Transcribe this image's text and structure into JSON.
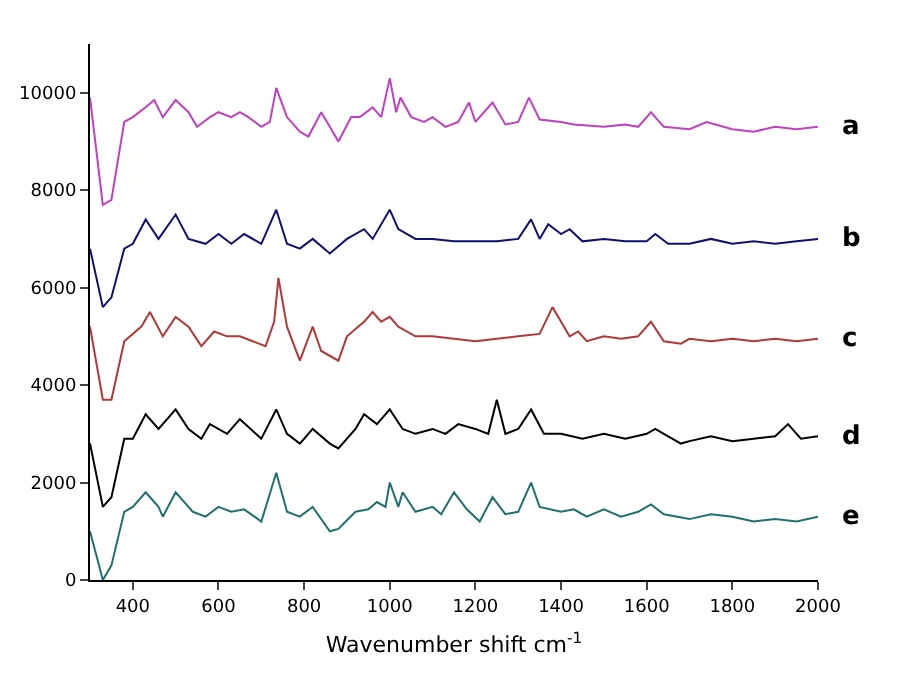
{
  "chart_data": {
    "type": "line",
    "xlabel": "Wavenumber shift cm$^{-1}$",
    "xlim": [
      300,
      2000
    ],
    "xticks": [
      400,
      600,
      800,
      1000,
      1200,
      1400,
      1600,
      1800,
      2000
    ],
    "ylim": [
      0,
      11000
    ],
    "yticks": [
      0,
      2000,
      4000,
      6000,
      8000,
      10000
    ],
    "grid": false,
    "legend": false,
    "marker": "none",
    "line_style": "solid",
    "series": [
      {
        "name": "a",
        "color": "#c040c0",
        "x": [
          300,
          330,
          350,
          380,
          400,
          430,
          450,
          470,
          500,
          530,
          550,
          580,
          600,
          630,
          650,
          670,
          700,
          720,
          735,
          760,
          790,
          810,
          840,
          860,
          880,
          910,
          930,
          960,
          980,
          1000,
          1015,
          1025,
          1050,
          1080,
          1100,
          1130,
          1160,
          1185,
          1200,
          1240,
          1270,
          1300,
          1325,
          1350,
          1400,
          1430,
          1500,
          1550,
          1580,
          1610,
          1640,
          1700,
          1740,
          1800,
          1850,
          1900,
          1950,
          2000
        ],
        "values": [
          9900,
          7700,
          7800,
          9400,
          9500,
          9700,
          9850,
          9500,
          9850,
          9600,
          9300,
          9500,
          9600,
          9500,
          9600,
          9500,
          9300,
          9400,
          10100,
          9500,
          9200,
          9100,
          9600,
          9300,
          9000,
          9500,
          9500,
          9700,
          9500,
          10300,
          9600,
          9900,
          9500,
          9400,
          9500,
          9300,
          9400,
          9800,
          9400,
          9800,
          9350,
          9400,
          9900,
          9450,
          9400,
          9350,
          9300,
          9350,
          9300,
          9600,
          9300,
          9250,
          9400,
          9250,
          9200,
          9300,
          9250,
          9300
        ]
      },
      {
        "name": "b",
        "color": "#101070",
        "x": [
          300,
          330,
          350,
          380,
          400,
          430,
          460,
          500,
          530,
          570,
          600,
          630,
          660,
          700,
          735,
          760,
          790,
          820,
          860,
          900,
          940,
          960,
          1000,
          1020,
          1060,
          1100,
          1150,
          1200,
          1250,
          1300,
          1330,
          1350,
          1370,
          1400,
          1420,
          1450,
          1500,
          1550,
          1600,
          1620,
          1650,
          1700,
          1750,
          1800,
          1850,
          1900,
          1950,
          2000
        ],
        "values": [
          6800,
          5600,
          5800,
          6800,
          6900,
          7400,
          7000,
          7500,
          7000,
          6900,
          7100,
          6900,
          7100,
          6900,
          7600,
          6900,
          6800,
          7000,
          6700,
          7000,
          7200,
          7000,
          7600,
          7200,
          7000,
          7000,
          6950,
          6950,
          6950,
          7000,
          7400,
          7000,
          7300,
          7100,
          7200,
          6950,
          7000,
          6950,
          6950,
          7100,
          6900,
          6900,
          7000,
          6900,
          6950,
          6900,
          6950,
          7000
        ]
      },
      {
        "name": "c",
        "color": "#b03838",
        "x": [
          300,
          330,
          350,
          380,
          420,
          440,
          470,
          500,
          530,
          560,
          590,
          620,
          650,
          680,
          710,
          730,
          740,
          760,
          790,
          820,
          840,
          880,
          900,
          940,
          960,
          980,
          1000,
          1020,
          1060,
          1100,
          1150,
          1200,
          1250,
          1300,
          1350,
          1380,
          1400,
          1420,
          1440,
          1460,
          1500,
          1540,
          1580,
          1610,
          1640,
          1680,
          1700,
          1750,
          1800,
          1850,
          1900,
          1950,
          2000
        ],
        "values": [
          5200,
          3700,
          3700,
          4900,
          5200,
          5500,
          5000,
          5400,
          5200,
          4800,
          5100,
          5000,
          5000,
          4900,
          4800,
          5300,
          6200,
          5200,
          4500,
          5200,
          4700,
          4500,
          5000,
          5300,
          5500,
          5300,
          5400,
          5200,
          5000,
          5000,
          4950,
          4900,
          4950,
          5000,
          5050,
          5600,
          5300,
          5000,
          5100,
          4900,
          5000,
          4950,
          5000,
          5300,
          4900,
          4850,
          4950,
          4900,
          4950,
          4900,
          4950,
          4900,
          4950
        ]
      },
      {
        "name": "d",
        "color": "#000000",
        "x": [
          300,
          330,
          350,
          380,
          400,
          430,
          460,
          500,
          530,
          560,
          580,
          620,
          650,
          700,
          735,
          760,
          790,
          820,
          860,
          880,
          920,
          940,
          970,
          1000,
          1030,
          1060,
          1100,
          1130,
          1160,
          1200,
          1230,
          1250,
          1270,
          1300,
          1330,
          1360,
          1400,
          1450,
          1500,
          1550,
          1600,
          1620,
          1650,
          1680,
          1700,
          1750,
          1800,
          1850,
          1900,
          1930,
          1960,
          2000
        ],
        "values": [
          2800,
          1500,
          1700,
          2900,
          2900,
          3400,
          3100,
          3500,
          3100,
          2900,
          3200,
          3000,
          3300,
          2900,
          3500,
          3000,
          2800,
          3100,
          2800,
          2700,
          3100,
          3400,
          3200,
          3500,
          3100,
          3000,
          3100,
          3000,
          3200,
          3100,
          3000,
          3700,
          3000,
          3100,
          3500,
          3000,
          3000,
          2900,
          3000,
          2900,
          3000,
          3100,
          2950,
          2800,
          2850,
          2950,
          2850,
          2900,
          2950,
          3200,
          2900,
          2950
        ]
      },
      {
        "name": "e",
        "color": "#207070",
        "x": [
          300,
          330,
          350,
          380,
          400,
          430,
          460,
          470,
          500,
          540,
          570,
          600,
          630,
          660,
          700,
          735,
          760,
          790,
          820,
          860,
          880,
          920,
          950,
          970,
          990,
          1000,
          1020,
          1030,
          1060,
          1100,
          1120,
          1150,
          1180,
          1210,
          1240,
          1270,
          1300,
          1330,
          1350,
          1400,
          1430,
          1460,
          1500,
          1540,
          1580,
          1610,
          1640,
          1700,
          1750,
          1800,
          1850,
          1900,
          1950,
          2000
        ],
        "values": [
          1000,
          0,
          300,
          1400,
          1500,
          1800,
          1500,
          1300,
          1800,
          1400,
          1300,
          1500,
          1400,
          1450,
          1200,
          2200,
          1400,
          1300,
          1500,
          1000,
          1050,
          1400,
          1450,
          1600,
          1500,
          2000,
          1500,
          1800,
          1400,
          1500,
          1350,
          1800,
          1450,
          1200,
          1700,
          1350,
          1400,
          2000,
          1500,
          1400,
          1450,
          1300,
          1450,
          1300,
          1400,
          1550,
          1350,
          1250,
          1350,
          1300,
          1200,
          1250,
          1200,
          1300
        ]
      }
    ]
  }
}
